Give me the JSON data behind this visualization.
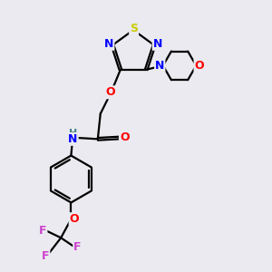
{
  "background_color": "#eaeaf0",
  "bond_color": "#000000",
  "atom_colors": {
    "S": "#cccc00",
    "N": "#0000ff",
    "O": "#ff0000",
    "H": "#408080",
    "F": "#cc44cc",
    "C": "#000000"
  }
}
